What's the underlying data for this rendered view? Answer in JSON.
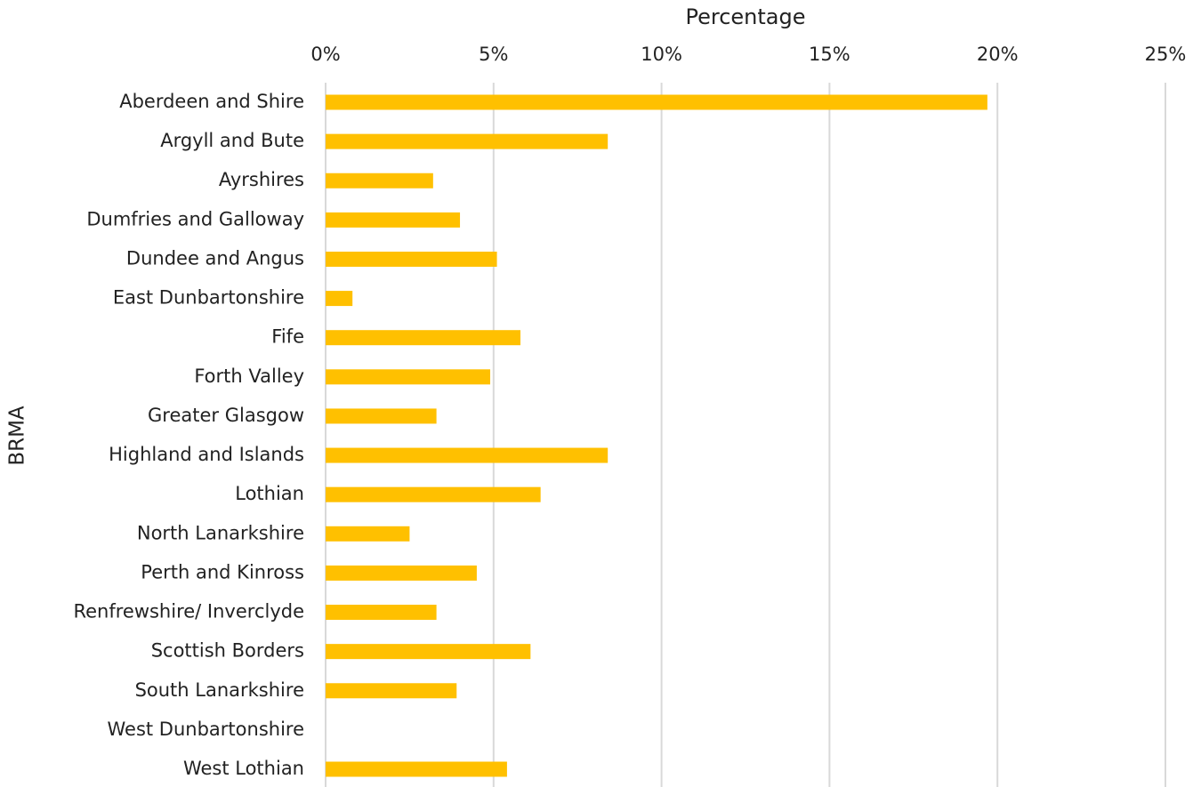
{
  "chart_data": {
    "type": "hbar",
    "x_label": "Percentage",
    "y_label": "BRMA",
    "categories": [
      "Aberdeen and Shire",
      "Argyll and Bute",
      "Ayrshires",
      "Dumfries and Galloway",
      "Dundee and Angus",
      "East Dunbartonshire",
      "Fife",
      "Forth Valley",
      "Greater Glasgow",
      "Highland and Islands",
      "Lothian",
      "North Lanarkshire",
      "Perth and Kinross",
      "Renfrewshire/ Inverclyde",
      "Scottish Borders",
      "South Lanarkshire",
      "West Dunbartonshire",
      "West Lothian"
    ],
    "values": [
      19.7,
      8.4,
      3.2,
      4.0,
      5.1,
      0.8,
      5.8,
      4.9,
      3.3,
      8.4,
      6.4,
      2.5,
      4.5,
      3.3,
      6.1,
      3.9,
      0,
      5.4
    ],
    "color": "#ffc000",
    "xlim": [
      0,
      25
    ],
    "xticks": [
      {
        "value": 0,
        "label": "0%"
      },
      {
        "value": 5,
        "label": "5%"
      },
      {
        "value": 10,
        "label": "10%"
      },
      {
        "value": 15,
        "label": "15%"
      },
      {
        "value": 20,
        "label": "20%"
      },
      {
        "value": 25,
        "label": "25%"
      }
    ],
    "grid": true
  }
}
